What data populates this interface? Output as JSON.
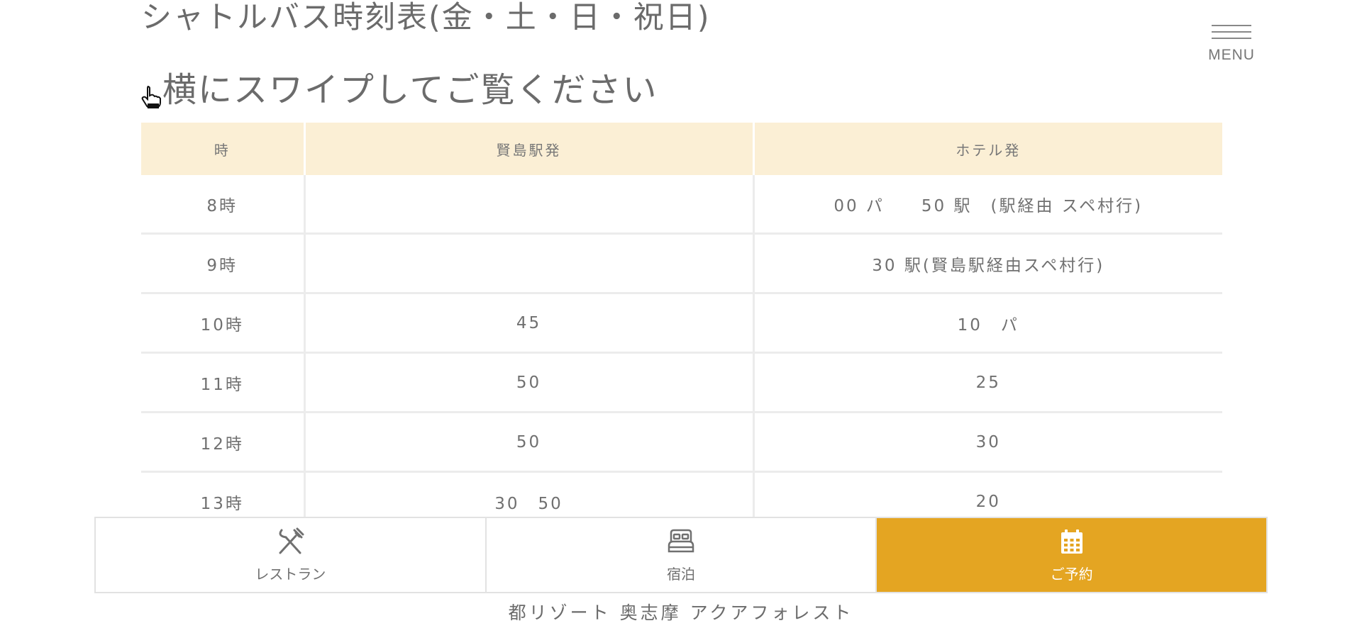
{
  "header": {
    "title": "シャトルバス時刻表(金・土・日・祝日)",
    "swipe_hint": "横にスワイプしてご覧ください",
    "menu_label": "MENU"
  },
  "timetable": {
    "headers": [
      "時",
      "賢島駅発",
      "ホテル発"
    ],
    "rows": [
      [
        "8時",
        "",
        "00 パ　　50 駅　(駅経由 スペ村行)"
      ],
      [
        "9時",
        "",
        "30 駅(賢島駅経由スペ村行)"
      ],
      [
        "10時",
        "45",
        "10　パ"
      ],
      [
        "11時",
        "50",
        "25"
      ],
      [
        "12時",
        "50",
        "30"
      ],
      [
        "13時",
        "30　50",
        "20"
      ]
    ]
  },
  "bottom_nav": {
    "items": [
      {
        "label": "レストラン",
        "icon": "restaurant-icon"
      },
      {
        "label": "宿泊",
        "icon": "bed-icon"
      },
      {
        "label": "ご予約",
        "icon": "calendar-icon"
      }
    ],
    "active_color": "#e4a522"
  },
  "footer": {
    "name": "都リゾート 奥志摩 アクアフォレスト"
  }
}
